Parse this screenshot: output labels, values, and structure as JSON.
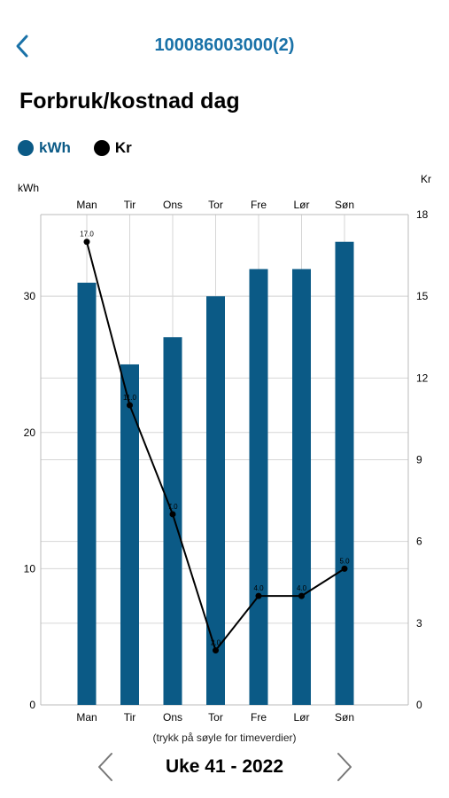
{
  "header": {
    "title": "100086003000(2)"
  },
  "page_title": "Forbruk/kostnad dag",
  "legend": [
    {
      "label": "kWh",
      "color": "#0b5a86"
    },
    {
      "label": "Kr",
      "color": "#000000"
    }
  ],
  "chart_data": {
    "type": "bar",
    "categories": [
      "Man",
      "Tir",
      "Ons",
      "Tor",
      "Fre",
      "Lør",
      "Søn"
    ],
    "series": [
      {
        "name": "kWh",
        "type": "bar",
        "axis": "left",
        "color": "#0b5a86",
        "values": [
          31,
          25,
          27,
          30,
          32,
          32,
          34
        ]
      },
      {
        "name": "Kr",
        "type": "line",
        "axis": "right",
        "color": "#000000",
        "values": [
          17.0,
          11.0,
          7.0,
          2.0,
          4.0,
          4.0,
          5.0
        ]
      }
    ],
    "point_labels": [
      "17.0",
      "11.0",
      "7.0",
      "2.0",
      "4.0",
      "4.0",
      "5.0"
    ],
    "y_left": {
      "label": "kWh",
      "ticks": [
        "0",
        "10",
        "20",
        "30"
      ],
      "ylim": [
        0,
        36
      ]
    },
    "y_right": {
      "label": "Kr",
      "ticks": [
        "0",
        "3",
        "6",
        "9",
        "12",
        "15",
        "18"
      ],
      "ylim": [
        0,
        18
      ]
    },
    "grid": true
  },
  "hint": "(trykk på søyle for timeverdier)",
  "week": {
    "label": "Uke 41 - 2022"
  }
}
